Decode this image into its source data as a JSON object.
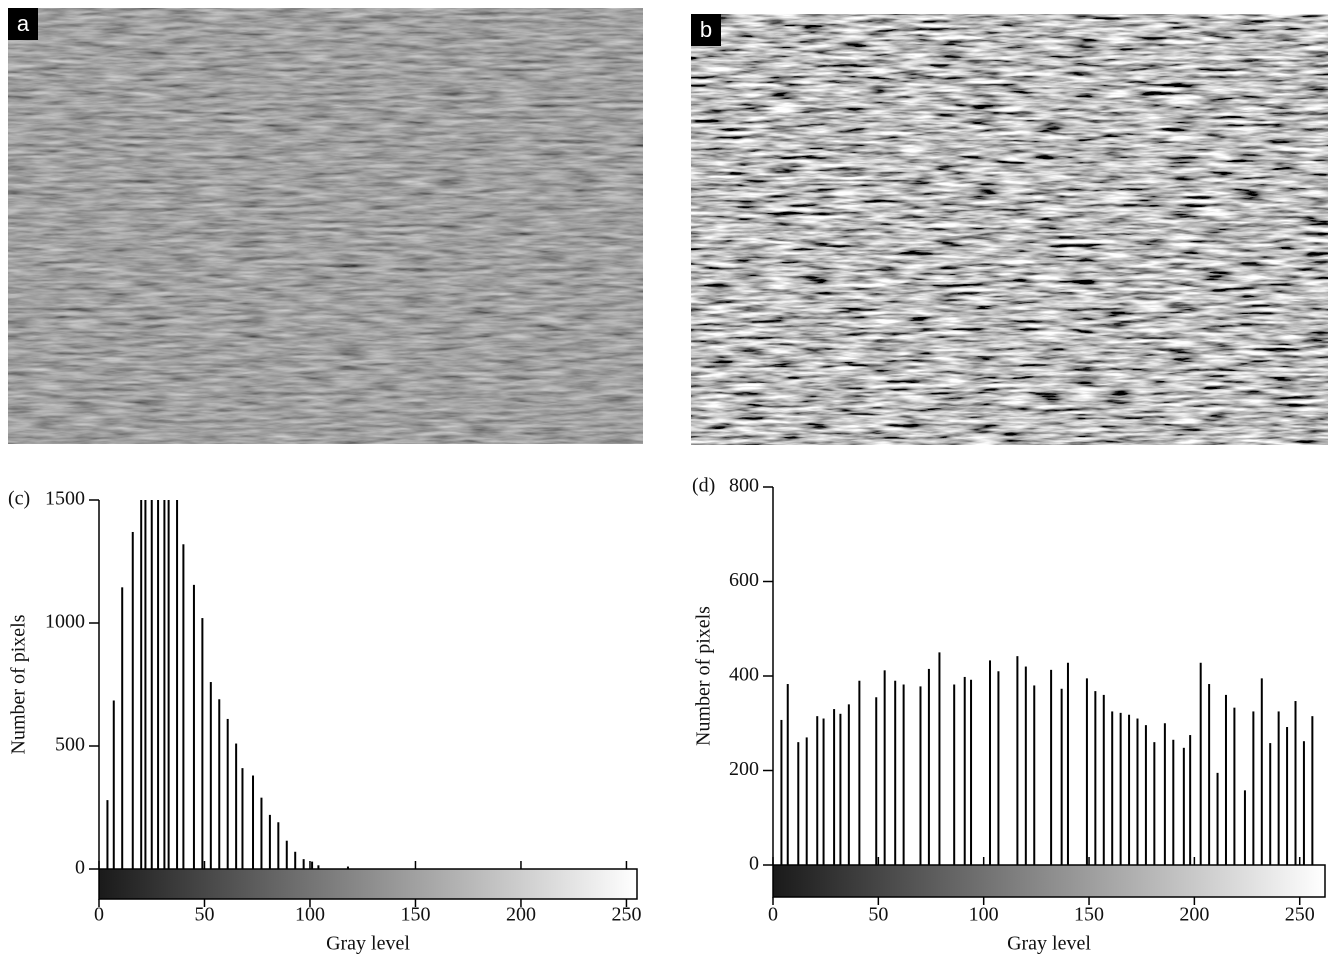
{
  "images": [
    {
      "label": "a"
    },
    {
      "label": "b"
    }
  ],
  "chart_data": [
    {
      "type": "bar",
      "panel": "(c)",
      "ylabel": "Number of pixels",
      "xlabel": "Gray level",
      "color": "#000000",
      "x": [
        4,
        7,
        11,
        16,
        20,
        22,
        25,
        28,
        31,
        33,
        37,
        40,
        45,
        49,
        53,
        57,
        61,
        65,
        68,
        73,
        77,
        81,
        85,
        89,
        93,
        97,
        101,
        104,
        118
      ],
      "values": [
        280,
        685,
        1145,
        1370,
        1500,
        1500,
        1500,
        1500,
        1500,
        1500,
        1500,
        1320,
        1155,
        1020,
        760,
        690,
        610,
        510,
        410,
        380,
        290,
        220,
        190,
        115,
        70,
        40,
        30,
        15,
        10
      ],
      "xlim": [
        0,
        255
      ],
      "ylim": [
        0,
        1500
      ],
      "xticks": [
        0,
        50,
        100,
        150,
        200,
        250
      ],
      "yticks": [
        0,
        500,
        1000,
        1500
      ]
    },
    {
      "type": "bar",
      "panel": "(d)",
      "ylabel": "Number of pixels",
      "xlabel": "Gray level",
      "color": "#000000",
      "x": [
        4,
        7,
        12,
        16,
        21,
        24,
        29,
        32,
        36,
        41,
        49,
        53,
        58,
        62,
        70,
        74,
        79,
        86,
        91,
        94,
        103,
        107,
        116,
        120,
        124,
        132,
        137,
        140,
        149,
        153,
        157,
        161,
        165,
        169,
        173,
        177,
        181,
        186,
        190,
        195,
        198,
        203,
        207,
        211,
        215,
        219,
        224,
        228,
        232,
        236,
        240,
        244,
        248,
        252,
        256
      ],
      "values": [
        307,
        383,
        260,
        270,
        315,
        310,
        330,
        320,
        340,
        390,
        355,
        412,
        390,
        382,
        378,
        415,
        450,
        382,
        398,
        392,
        433,
        410,
        442,
        420,
        380,
        413,
        373,
        428,
        395,
        368,
        360,
        325,
        322,
        318,
        310,
        296,
        260,
        300,
        265,
        248,
        275,
        428,
        383,
        195,
        360,
        333,
        158,
        325,
        395,
        258,
        325,
        292,
        347,
        262,
        315
      ],
      "xlim": [
        0,
        262
      ],
      "ylim": [
        0,
        800
      ],
      "xticks": [
        0,
        50,
        100,
        150,
        200,
        250
      ],
      "yticks": [
        0,
        200,
        400,
        600,
        800
      ]
    }
  ]
}
